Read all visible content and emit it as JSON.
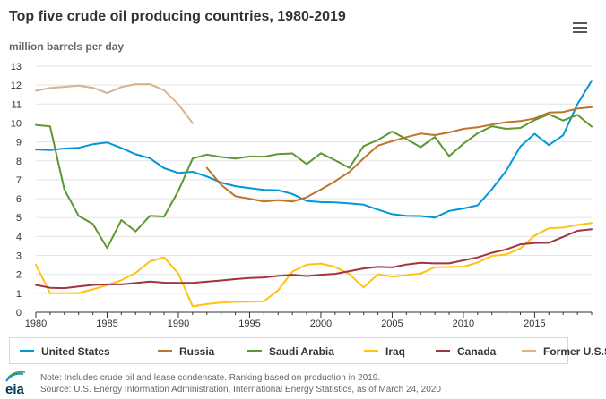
{
  "title": "Top five crude oil producing countries, 1980-2019",
  "subtitle": "million barrels per day",
  "note": "Note: Includes crude oil and lease condensate. Ranking based on production in 2019.",
  "source": "Source: U.S. Energy Information Administration, International Energy Statistics, as of March 24, 2020",
  "logo_text": "eia",
  "menu_icon": "hamburger-menu-icon",
  "chart_data": {
    "type": "line",
    "title": "Top five crude oil producing countries, 1980-2019",
    "ylabel": "million barrels per day",
    "xlabel": "",
    "xlim": [
      1980,
      2019
    ],
    "ylim": [
      0,
      13
    ],
    "x_ticks": [
      1980,
      1985,
      1990,
      1995,
      2000,
      2005,
      2010,
      2015
    ],
    "y_ticks": [
      0,
      1,
      2,
      3,
      4,
      5,
      6,
      7,
      8,
      9,
      10,
      11,
      12,
      13
    ],
    "grid": "horizontal",
    "legend_position": "bottom",
    "series": [
      {
        "name": "United States",
        "color": "#0096d7",
        "start_year": 1980,
        "values": [
          8.6,
          8.57,
          8.65,
          8.69,
          8.88,
          8.97,
          8.68,
          8.35,
          8.14,
          7.61,
          7.36,
          7.42,
          7.17,
          6.85,
          6.66,
          6.56,
          6.46,
          6.45,
          6.25,
          5.88,
          5.82,
          5.8,
          5.75,
          5.68,
          5.42,
          5.18,
          5.09,
          5.08,
          5.0,
          5.35,
          5.48,
          5.65,
          6.5,
          7.47,
          8.76,
          9.43,
          8.83,
          9.35,
          10.99,
          12.23
        ]
      },
      {
        "name": "Russia",
        "color": "#bd732a",
        "start_year": 1992,
        "values": [
          7.63,
          6.73,
          6.13,
          6.0,
          5.85,
          5.92,
          5.85,
          6.08,
          6.48,
          6.92,
          7.41,
          8.13,
          8.8,
          9.04,
          9.25,
          9.44,
          9.36,
          9.5,
          9.69,
          9.77,
          9.92,
          10.04,
          10.1,
          10.24,
          10.55,
          10.58,
          10.76,
          10.84
        ]
      },
      {
        "name": "Saudi Arabia",
        "color": "#5d9732",
        "start_year": 1980,
        "values": [
          9.9,
          9.82,
          6.48,
          5.09,
          4.66,
          3.39,
          4.87,
          4.27,
          5.09,
          5.06,
          6.41,
          8.12,
          8.33,
          8.2,
          8.12,
          8.23,
          8.22,
          8.36,
          8.39,
          7.83,
          8.4,
          8.03,
          7.63,
          8.78,
          9.1,
          9.55,
          9.15,
          8.72,
          9.26,
          8.25,
          8.9,
          9.46,
          9.83,
          9.69,
          9.74,
          10.16,
          10.46,
          10.13,
          10.43,
          9.81
        ]
      },
      {
        "name": "Iraq",
        "color": "#ffc20e",
        "start_year": 1980,
        "values": [
          2.51,
          1.0,
          1.01,
          1.01,
          1.21,
          1.43,
          1.69,
          2.08,
          2.69,
          2.9,
          2.04,
          0.31,
          0.43,
          0.51,
          0.55,
          0.56,
          0.58,
          1.16,
          2.15,
          2.51,
          2.57,
          2.39,
          2.02,
          1.31,
          2.01,
          1.88,
          1.96,
          2.04,
          2.38,
          2.39,
          2.4,
          2.63,
          2.98,
          3.05,
          3.37,
          4.05,
          4.44,
          4.47,
          4.61,
          4.72
        ]
      },
      {
        "name": "Canada",
        "color": "#a33340",
        "start_year": 1980,
        "values": [
          1.44,
          1.29,
          1.27,
          1.36,
          1.44,
          1.47,
          1.47,
          1.54,
          1.62,
          1.56,
          1.55,
          1.55,
          1.61,
          1.68,
          1.75,
          1.81,
          1.84,
          1.92,
          1.98,
          1.91,
          1.98,
          2.03,
          2.17,
          2.31,
          2.4,
          2.37,
          2.52,
          2.61,
          2.58,
          2.58,
          2.74,
          2.9,
          3.14,
          3.32,
          3.59,
          3.66,
          3.67,
          3.98,
          4.3,
          4.38
        ]
      },
      {
        "name": "Former U.S.S.R.",
        "color": "#d9b38c",
        "start_year": 1980,
        "values": [
          11.7,
          11.85,
          11.91,
          11.97,
          11.86,
          11.58,
          11.9,
          12.05,
          12.05,
          11.73,
          10.98,
          9.99
        ]
      }
    ]
  }
}
